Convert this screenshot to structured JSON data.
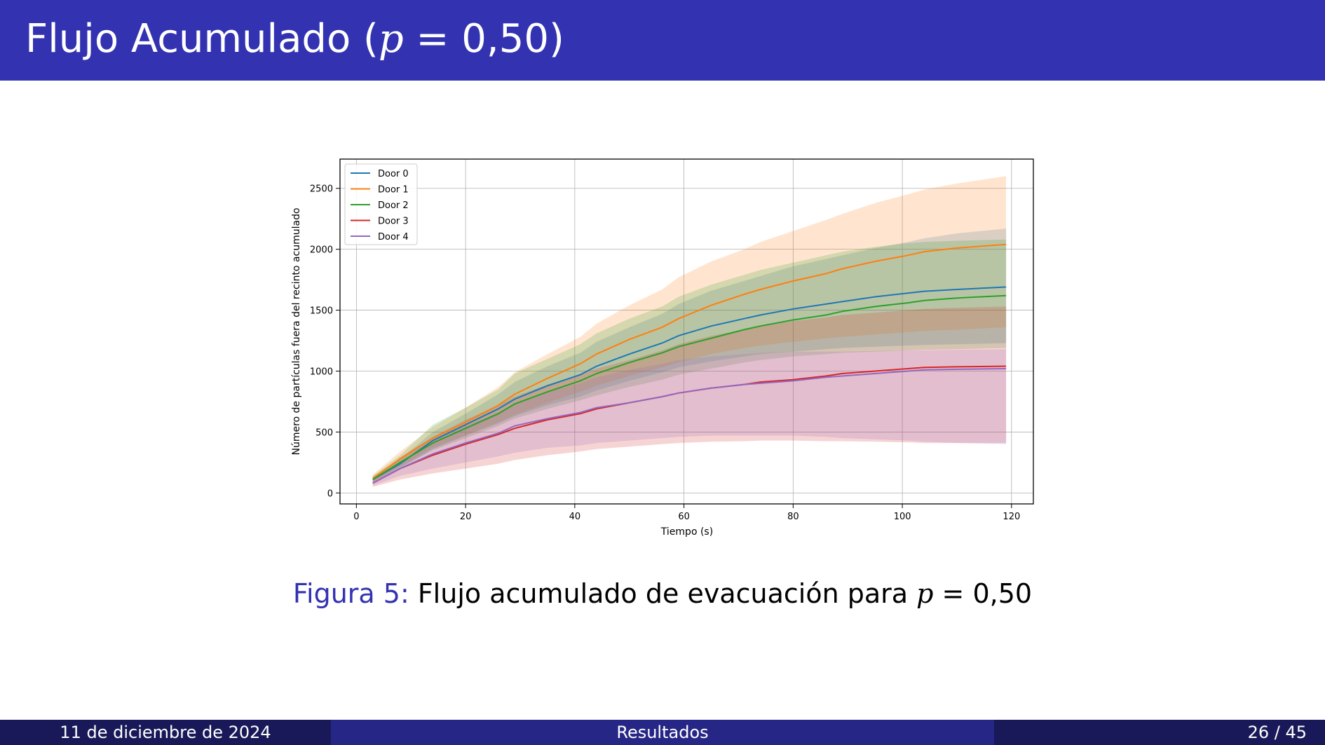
{
  "slide": {
    "title_prefix": "Flujo Acumulado (",
    "title_var": "p",
    "title_suffix": " = 0,50)",
    "caption_label": "Figura 5:",
    "caption_prefix": " Flujo acumulado de evacuación para ",
    "caption_var": "p",
    "caption_suffix": " = 0,50"
  },
  "footer": {
    "date": "11 de diciembre de 2024",
    "section": "Resultados",
    "page": "26 / 45"
  },
  "colors": {
    "title_bar": "#3333b2",
    "footer_dark": "#191959",
    "footer_mid": "#262686"
  },
  "chart_data": {
    "type": "line",
    "xlabel": "Tiempo (s)",
    "ylabel": "Número de partículas fuera del recinto acumulado",
    "xlim": [
      -3,
      124
    ],
    "ylim": [
      -90,
      2740
    ],
    "xticks": [
      0,
      20,
      40,
      60,
      80,
      100,
      120
    ],
    "yticks": [
      0,
      500,
      1000,
      1500,
      2000,
      2500
    ],
    "grid": true,
    "legend_position": "top-left",
    "x": [
      3,
      8,
      14,
      20,
      26,
      29,
      35,
      41,
      44,
      50,
      56,
      59,
      65,
      71,
      74,
      80,
      86,
      89,
      95,
      101,
      104,
      110,
      119
    ],
    "series": [
      {
        "name": "Door 0",
        "color": "#1f77b4",
        "values": [
          110,
          240,
          430,
          560,
          690,
          770,
          880,
          970,
          1040,
          1140,
          1230,
          1290,
          1370,
          1430,
          1460,
          1510,
          1550,
          1570,
          1610,
          1640,
          1655,
          1670,
          1690
        ],
        "lower": [
          90,
          200,
          360,
          470,
          570,
          630,
          720,
          790,
          840,
          920,
          990,
          1030,
          1080,
          1120,
          1140,
          1160,
          1180,
          1190,
          1200,
          1210,
          1215,
          1220,
          1230
        ],
        "upper": [
          130,
          280,
          500,
          650,
          810,
          910,
          1040,
          1150,
          1240,
          1360,
          1470,
          1550,
          1660,
          1740,
          1780,
          1860,
          1920,
          1950,
          2010,
          2060,
          2090,
          2130,
          2170
        ]
      },
      {
        "name": "Door 1",
        "color": "#ff7f0e",
        "values": [
          120,
          280,
          450,
          580,
          720,
          810,
          940,
          1060,
          1140,
          1260,
          1360,
          1430,
          1540,
          1630,
          1670,
          1740,
          1800,
          1840,
          1900,
          1950,
          1980,
          2010,
          2040
        ],
        "lower": [
          90,
          220,
          370,
          470,
          580,
          640,
          740,
          830,
          880,
          960,
          1030,
          1070,
          1140,
          1190,
          1210,
          1240,
          1270,
          1280,
          1300,
          1320,
          1330,
          1340,
          1360
        ],
        "upper": [
          150,
          340,
          540,
          700,
          870,
          990,
          1140,
          1280,
          1390,
          1540,
          1670,
          1770,
          1900,
          2000,
          2060,
          2150,
          2240,
          2290,
          2380,
          2450,
          2490,
          2540,
          2600
        ]
      },
      {
        "name": "Door 2",
        "color": "#2ca02c",
        "values": [
          110,
          250,
          410,
          530,
          650,
          730,
          830,
          920,
          980,
          1070,
          1150,
          1200,
          1270,
          1340,
          1370,
          1420,
          1460,
          1490,
          1530,
          1560,
          1580,
          1600,
          1620
        ],
        "lower": [
          90,
          210,
          350,
          450,
          550,
          610,
          690,
          760,
          800,
          870,
          930,
          970,
          1020,
          1070,
          1090,
          1120,
          1140,
          1150,
          1160,
          1170,
          1175,
          1180,
          1190
        ],
        "upper": [
          140,
          310,
          560,
          700,
          850,
          980,
          1100,
          1220,
          1310,
          1430,
          1530,
          1610,
          1710,
          1790,
          1830,
          1890,
          1950,
          1980,
          2020,
          2050,
          2060,
          2070,
          2080
        ]
      },
      {
        "name": "Door 3",
        "color": "#d62728",
        "values": [
          80,
          200,
          310,
          400,
          480,
          530,
          600,
          650,
          690,
          740,
          790,
          820,
          860,
          890,
          910,
          930,
          960,
          980,
          1000,
          1020,
          1030,
          1035,
          1040
        ],
        "lower": [
          50,
          110,
          160,
          200,
          240,
          270,
          310,
          340,
          360,
          380,
          400,
          410,
          420,
          425,
          430,
          430,
          425,
          425,
          420,
          415,
          410,
          410,
          410
        ],
        "upper": [
          110,
          290,
          460,
          600,
          720,
          790,
          890,
          970,
          1020,
          1090,
          1170,
          1220,
          1290,
          1340,
          1370,
          1410,
          1440,
          1460,
          1480,
          1500,
          1510,
          1520,
          1530
        ]
      },
      {
        "name": "Door 4",
        "color": "#9467bd",
        "values": [
          80,
          200,
          320,
          410,
          490,
          550,
          610,
          660,
          700,
          740,
          790,
          820,
          860,
          890,
          900,
          920,
          950,
          960,
          980,
          1000,
          1010,
          1015,
          1020
        ],
        "lower": [
          60,
          140,
          200,
          250,
          300,
          330,
          370,
          390,
          410,
          430,
          450,
          460,
          470,
          470,
          470,
          470,
          460,
          450,
          440,
          430,
          420,
          410,
          400
        ],
        "upper": [
          100,
          250,
          420,
          550,
          660,
          740,
          830,
          900,
          950,
          1010,
          1060,
          1090,
          1120,
          1140,
          1150,
          1160,
          1160,
          1160,
          1165,
          1170,
          1170,
          1175,
          1180
        ]
      }
    ]
  }
}
